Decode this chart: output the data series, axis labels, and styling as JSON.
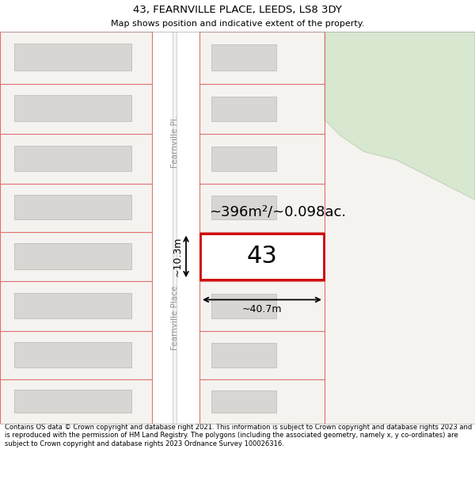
{
  "title": "43, FEARNVILLE PLACE, LEEDS, LS8 3DY",
  "subtitle": "Map shows position and indicative extent of the property.",
  "footer": "Contains OS data © Crown copyright and database right 2021. This information is subject to Crown copyright and database rights 2023 and is reproduced with the permission of HM Land Registry. The polygons (including the associated geometry, namely x, y co-ordinates) are subject to Crown copyright and database rights 2023 Ordnance Survey 100026316.",
  "map_bg": "#f5f3ef",
  "road_color": "#ffffff",
  "plot_line_color": "#e07070",
  "building_color": "#d8d6d2",
  "building_edge_color": "#c0bebb",
  "highlight_red": "#cc0000",
  "highlight_fill": "#ffffff",
  "green_color": "#d8e8d0",
  "green_edge": "#c0d4b8",
  "street_color": "#999999",
  "street_label_upper": "Fearnville Pl.",
  "street_label_lower": "Fearnville Place",
  "area_label": "~396m²/~0.098ac.",
  "width_label": "~40.7m",
  "height_label": "~10.3m",
  "number_label": "43",
  "title_fontsize": 9.5,
  "subtitle_fontsize": 8,
  "footer_fontsize": 6
}
